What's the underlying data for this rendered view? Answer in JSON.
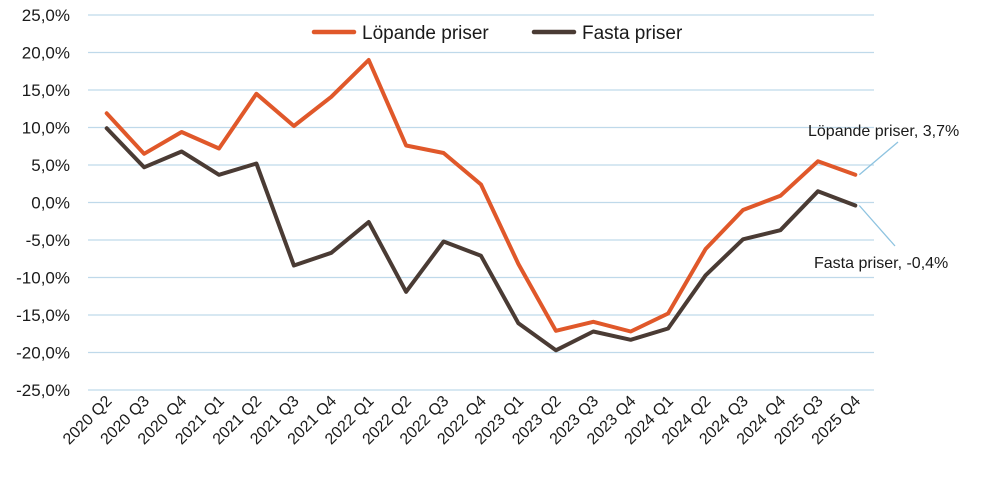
{
  "chart_data": {
    "type": "line",
    "categories": [
      "2020 Q2",
      "2020 Q3",
      "2020 Q4",
      "2021 Q1",
      "2021 Q2",
      "2021 Q3",
      "2021 Q4",
      "2022 Q1",
      "2022 Q2",
      "2022 Q3",
      "2022 Q4",
      "2023 Q1",
      "2023 Q2",
      "2023 Q3",
      "2023 Q4",
      "2024 Q1",
      "2024 Q2",
      "2024 Q3",
      "2024 Q4",
      "2025 Q3",
      "2025 Q4"
    ],
    "series": [
      {
        "name": "Löpande priser",
        "color": "#E0582A",
        "values": [
          11.9,
          6.5,
          9.4,
          7.2,
          14.5,
          10.2,
          14.1,
          19.0,
          7.6,
          6.6,
          2.4,
          -8.2,
          -17.1,
          -15.9,
          -17.2,
          -14.8,
          -6.2,
          -1.0,
          0.9,
          5.5,
          3.7
        ]
      },
      {
        "name": "Fasta priser",
        "color": "#4A3B34",
        "values": [
          9.9,
          4.7,
          6.8,
          3.7,
          5.2,
          -8.4,
          -6.7,
          -2.6,
          -11.9,
          -5.2,
          -7.1,
          -16.1,
          -19.7,
          -17.2,
          -18.3,
          -16.8,
          -9.7,
          -4.9,
          -3.7,
          1.5,
          -0.4
        ]
      }
    ],
    "ylim": [
      -25,
      25
    ],
    "yticks": [
      25,
      20,
      15,
      10,
      5,
      0,
      -5,
      -10,
      -15,
      -20,
      -25
    ],
    "ytick_labels": [
      "25,0%",
      "20,0%",
      "15,0%",
      "10,0%",
      "5,0%",
      "0,0%",
      "-5,0%",
      "-10,0%",
      "-15,0%",
      "-20,0%",
      "-25,0%"
    ],
    "grid": true,
    "legend_position": "top-center",
    "annotations": [
      {
        "series": 0,
        "text": "Löpande priser, 3,7%"
      },
      {
        "series": 1,
        "text": "Fasta priser, -0,4%"
      }
    ],
    "grid_color": "#BFD9EA",
    "annotation_line_color": "#8EC3E0"
  }
}
